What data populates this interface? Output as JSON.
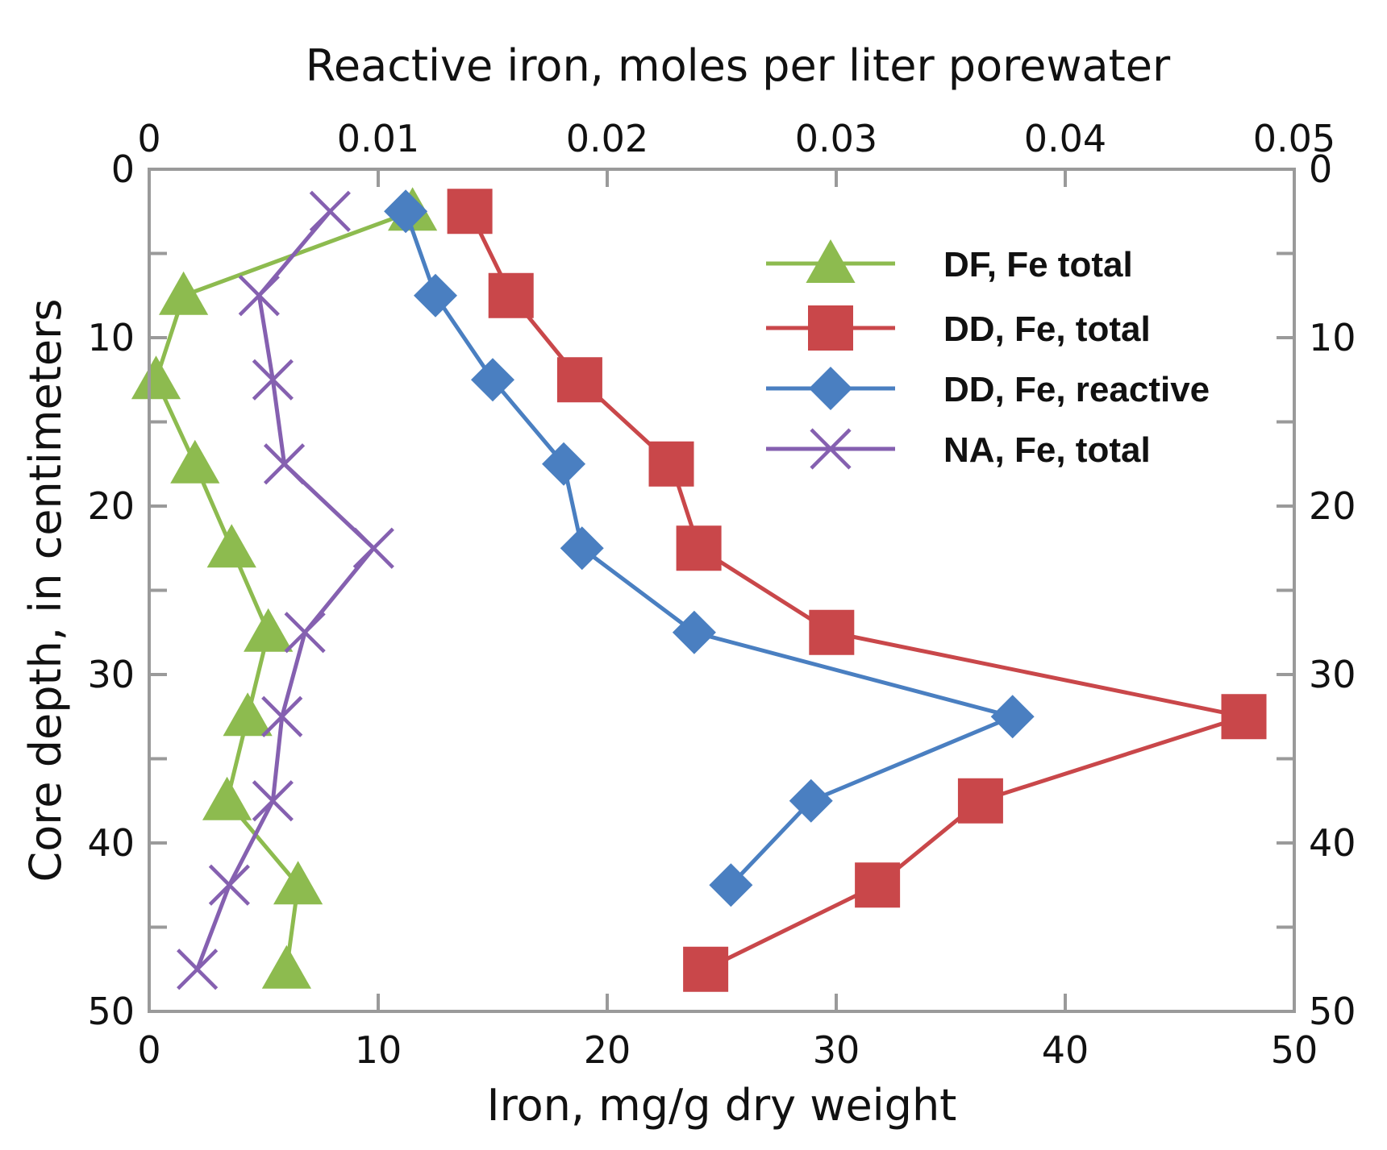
{
  "chart_data": {
    "type": "line",
    "title": "",
    "xlabel": "Iron, mg/g dry weight",
    "x2label": "Reactive iron, moles per liter porewater",
    "ylabel": "Core depth, in centimeters",
    "xlim": [
      0,
      50
    ],
    "x2lim": [
      0,
      0.05
    ],
    "ylim": [
      0,
      50
    ],
    "y_inverted": true,
    "x_ticks": [
      "0",
      "10",
      "20",
      "30",
      "40",
      "50"
    ],
    "x_tick_values": [
      0,
      10,
      20,
      30,
      40,
      50
    ],
    "x2_ticks": [
      "0",
      "0.01",
      "0.02",
      "0.03",
      "0.04",
      "0.05"
    ],
    "x2_tick_values": [
      0,
      0.01,
      0.02,
      0.03,
      0.04,
      0.05
    ],
    "y_ticks": [
      "0",
      "10",
      "20",
      "30",
      "40",
      "50"
    ],
    "y_tick_values": [
      0,
      10,
      20,
      30,
      40,
      50
    ],
    "y_minor_step": 5,
    "legend_position": "top-right",
    "series": [
      {
        "name": "DF, Fe total",
        "marker": "triangle",
        "color": "#8DBB4F",
        "x": [
          11.5,
          1.5,
          0.3,
          2.0,
          3.6,
          5.2,
          4.3,
          3.4,
          6.5,
          6.0
        ],
        "y": [
          2.5,
          7.5,
          12.5,
          17.5,
          22.5,
          27.5,
          32.5,
          37.5,
          42.5,
          47.5
        ]
      },
      {
        "name": "DD, Fe, total",
        "marker": "square",
        "color": "#C9474A",
        "x": [
          14.0,
          15.8,
          18.8,
          22.8,
          24.0,
          29.8,
          47.8,
          36.3,
          31.8,
          24.3
        ],
        "y": [
          2.5,
          7.5,
          12.5,
          17.5,
          22.5,
          27.5,
          32.5,
          37.5,
          42.5,
          47.5
        ]
      },
      {
        "name": "DD, Fe, reactive",
        "marker": "diamond",
        "color": "#4A7FC1",
        "x": [
          11.2,
          12.5,
          15.0,
          18.1,
          18.9,
          23.8,
          37.7,
          28.9,
          25.4
        ],
        "y": [
          2.5,
          7.5,
          12.5,
          17.5,
          22.5,
          27.5,
          32.5,
          37.5,
          42.5
        ]
      },
      {
        "name": "NA, Fe, total",
        "marker": "x",
        "color": "#8560B0",
        "x": [
          7.9,
          4.8,
          5.4,
          5.9,
          9.8,
          6.8,
          5.8,
          5.4,
          3.5,
          2.1
        ],
        "y": [
          2.5,
          7.5,
          12.5,
          17.5,
          22.5,
          27.5,
          32.5,
          37.5,
          42.5,
          47.5
        ]
      }
    ]
  }
}
